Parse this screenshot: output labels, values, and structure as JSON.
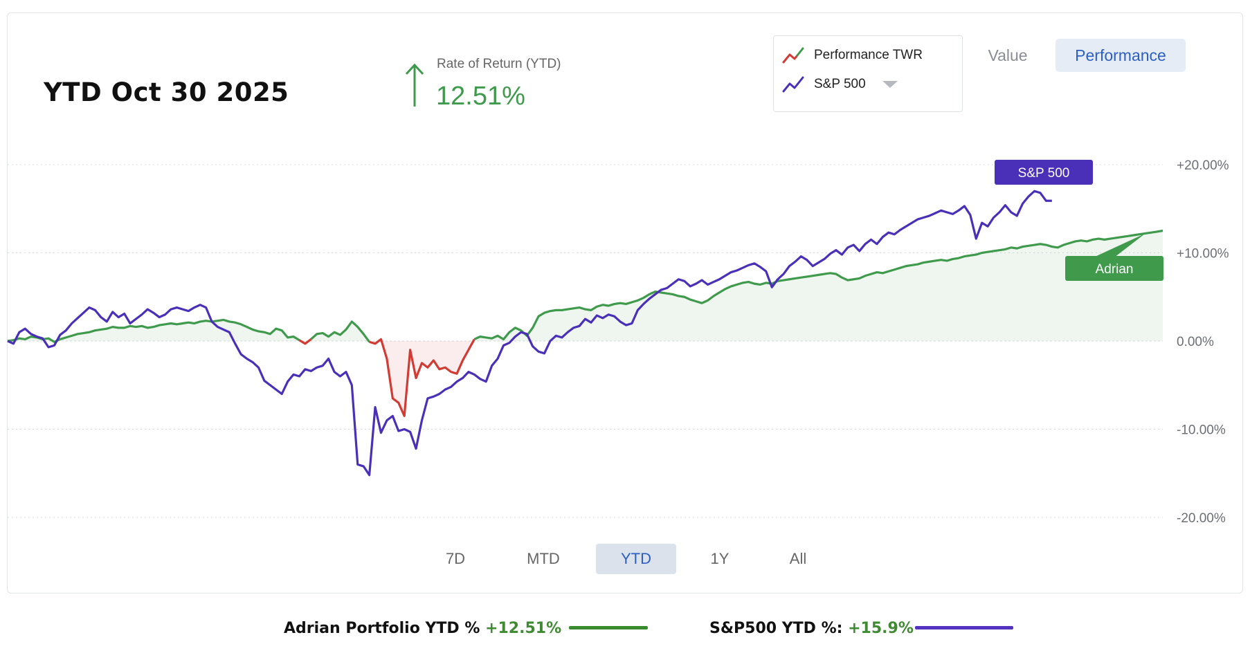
{
  "header": {
    "title": "YTD Oct 30 2025",
    "rate_label": "Rate of Return (YTD)",
    "rate_value": "12.51%"
  },
  "legend": {
    "items": [
      {
        "label": "Performance TWR",
        "icon": "line-chart-icon-green-red"
      },
      {
        "label": "S&P 500",
        "icon": "line-chart-icon-purple"
      }
    ]
  },
  "view_toggle": {
    "value_label": "Value",
    "performance_label": "Performance",
    "active": "Performance"
  },
  "ranges": {
    "options": [
      "7D",
      "MTD",
      "YTD",
      "1Y",
      "All"
    ],
    "active": "YTD"
  },
  "footer": {
    "portfolio_label": "Adrian Portfolio YTD % ",
    "portfolio_value": "+12.51%",
    "sp_label": "S&P500 YTD %: ",
    "sp_value": "+15.9%"
  },
  "colors": {
    "portfolio": "#3f9a4c",
    "portfolio_negative": "#d23b34",
    "sp500": "#4a2fb8",
    "sp_tag": "#4a2fb8",
    "adrian_tag": "#3f9a4c",
    "accent_blue": "#2c5fc4",
    "footer_green_line": "#3a8a2f",
    "footer_purple_line": "#5432c0"
  },
  "chart_data": {
    "type": "line",
    "ylim": [
      -22,
      22
    ],
    "yticks": [
      20,
      10,
      0,
      -10,
      -20
    ],
    "ytick_labels": [
      "+20.00%",
      "+10.00%",
      "0.00%",
      "-10.00%",
      "-20.00%"
    ],
    "grid": true,
    "annotations": [
      {
        "label": "S&P 500",
        "series": "S&P 500"
      },
      {
        "label": "Adrian",
        "series": "Performance TWR"
      }
    ],
    "series": [
      {
        "name": "Performance TWR",
        "values": [
          0.0,
          0.1,
          0.3,
          0.2,
          0.5,
          0.4,
          0.2,
          0.3,
          -0.1,
          0.2,
          0.4,
          0.6,
          0.8,
          0.9,
          1.0,
          1.2,
          1.3,
          1.4,
          1.6,
          1.5,
          1.5,
          1.7,
          1.6,
          1.7,
          1.5,
          1.6,
          1.8,
          1.9,
          2.0,
          1.9,
          2.0,
          2.1,
          2.0,
          2.2,
          2.3,
          2.2,
          2.3,
          2.4,
          2.2,
          2.1,
          1.9,
          1.6,
          1.3,
          1.1,
          1.0,
          0.8,
          1.4,
          1.2,
          0.4,
          0.5,
          0.1,
          -0.3,
          0.2,
          0.8,
          0.9,
          0.5,
          1.0,
          0.7,
          1.3,
          2.2,
          1.6,
          0.8,
          -0.1,
          -0.3,
          0.2,
          -2.0,
          -6.5,
          -7.0,
          -8.5,
          -1.0,
          -4.2,
          -2.5,
          -3.0,
          -2.2,
          -3.2,
          -3.0,
          -3.5,
          -3.7,
          -2.2,
          -1.0,
          0.2,
          0.5,
          0.4,
          0.3,
          0.6,
          0.2,
          1.0,
          1.5,
          1.2,
          0.6,
          1.5,
          2.8,
          3.2,
          3.4,
          3.5,
          3.5,
          3.6,
          3.7,
          3.8,
          3.6,
          3.5,
          3.9,
          4.1,
          4.0,
          4.2,
          4.3,
          4.2,
          4.4,
          4.6,
          4.9,
          5.3,
          5.6,
          5.5,
          5.4,
          5.3,
          5.1,
          5.0,
          4.7,
          4.5,
          4.3,
          4.6,
          5.1,
          5.5,
          5.9,
          6.2,
          6.4,
          6.6,
          6.7,
          6.5,
          6.4,
          6.6,
          6.5,
          6.8,
          6.9,
          7.0,
          7.1,
          7.2,
          7.3,
          7.4,
          7.5,
          7.6,
          7.7,
          7.6,
          7.2,
          6.9,
          7.0,
          7.1,
          7.4,
          7.6,
          7.8,
          7.7,
          7.9,
          8.1,
          8.3,
          8.5,
          8.6,
          8.7,
          8.9,
          9.0,
          9.1,
          9.2,
          9.1,
          9.3,
          9.4,
          9.6,
          9.7,
          9.8,
          10.0,
          10.1,
          10.2,
          10.3,
          10.4,
          10.6,
          10.5,
          10.7,
          10.8,
          10.9,
          11.0,
          10.9,
          10.7,
          10.6,
          10.9,
          11.1,
          11.3,
          11.4,
          11.3,
          11.5,
          11.6,
          11.5,
          11.6,
          11.7,
          11.8,
          11.9,
          12.0,
          12.1,
          12.2,
          12.3,
          12.4,
          12.51
        ]
      },
      {
        "name": "S&P 500",
        "values": [
          0.0,
          -0.3,
          1.0,
          1.4,
          0.8,
          0.5,
          0.3,
          -0.7,
          -0.5,
          0.7,
          1.2,
          2.0,
          2.6,
          3.2,
          3.8,
          3.5,
          2.7,
          2.2,
          3.3,
          2.7,
          3.1,
          2.0,
          2.5,
          3.0,
          3.6,
          3.2,
          2.7,
          3.0,
          3.6,
          3.8,
          3.6,
          3.4,
          3.8,
          4.1,
          3.8,
          2.2,
          1.6,
          1.3,
          1.0,
          -0.3,
          -1.5,
          -2.0,
          -2.4,
          -3.0,
          -4.5,
          -5.0,
          -5.5,
          -6.0,
          -4.6,
          -3.8,
          -4.0,
          -3.2,
          -3.4,
          -3.0,
          -2.8,
          -2.0,
          -3.5,
          -4.0,
          -3.5,
          -5.0,
          -14.0,
          -14.2,
          -15.2,
          -7.5,
          -10.4,
          -9.0,
          -8.5,
          -10.2,
          -10.0,
          -10.3,
          -12.2,
          -9.0,
          -6.5,
          -6.3,
          -6.0,
          -5.5,
          -5.2,
          -4.6,
          -4.2,
          -3.5,
          -3.8,
          -4.3,
          -4.6,
          -2.8,
          -2.0,
          -0.5,
          -0.2,
          0.5,
          1.0,
          0.8,
          -0.6,
          -1.2,
          -1.4,
          0.0,
          0.6,
          0.4,
          1.0,
          1.5,
          1.7,
          2.5,
          2.1,
          2.9,
          2.6,
          3.0,
          2.8,
          2.2,
          1.8,
          2.0,
          3.5,
          4.2,
          4.8,
          5.3,
          5.8,
          6.0,
          6.5,
          7.0,
          6.8,
          6.2,
          6.5,
          6.9,
          6.4,
          6.7,
          7.0,
          7.4,
          7.8,
          8.0,
          8.3,
          8.6,
          8.8,
          8.4,
          7.9,
          6.1,
          7.0,
          7.6,
          8.5,
          9.0,
          9.6,
          9.2,
          8.5,
          8.9,
          9.3,
          9.9,
          10.3,
          9.8,
          10.6,
          10.9,
          10.2,
          11.0,
          11.5,
          11.0,
          11.8,
          12.3,
          12.1,
          12.6,
          13.0,
          13.4,
          13.8,
          14.0,
          14.2,
          14.5,
          14.8,
          14.6,
          14.4,
          14.8,
          15.3,
          14.3,
          11.6,
          13.4,
          13.0,
          14.0,
          14.6,
          15.4,
          14.6,
          14.2,
          15.6,
          16.4,
          17.0,
          16.8,
          15.9,
          15.9
        ]
      }
    ]
  }
}
